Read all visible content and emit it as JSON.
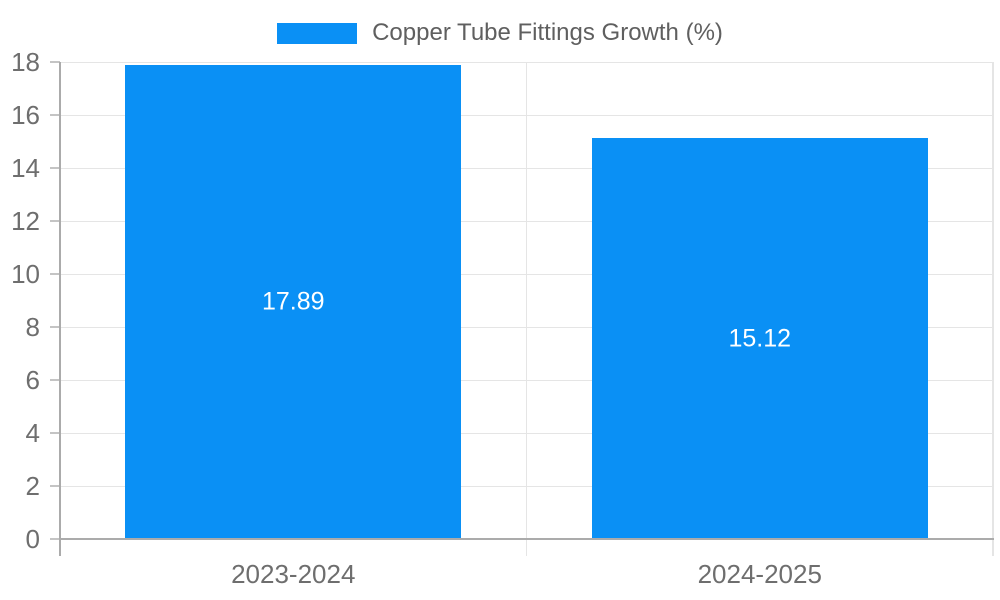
{
  "legend": {
    "label": "Copper Tube Fittings Growth (%)",
    "swatch_color": "#0a90f5"
  },
  "chart_data": {
    "type": "bar",
    "title": "",
    "xlabel": "",
    "ylabel": "",
    "categories": [
      "2023-2024",
      "2024-2025"
    ],
    "series": [
      {
        "name": "Copper Tube Fittings Growth (%)",
        "values": [
          17.89,
          15.12
        ]
      }
    ],
    "value_labels": [
      "17.89",
      "15.12"
    ],
    "ylim": [
      0,
      18
    ],
    "yticks": [
      0,
      2,
      4,
      6,
      8,
      10,
      12,
      14,
      16,
      18
    ],
    "grid": true,
    "legend_position": "top-center",
    "bar_width_fraction": 0.72,
    "colors": {
      "bar": "#0a90f5",
      "grid": "#e5e5e5",
      "axis": "#ababab",
      "tick_text": "#6e6e6e",
      "legend_text": "#5f5f5f",
      "value_text": "#ffffff"
    }
  }
}
